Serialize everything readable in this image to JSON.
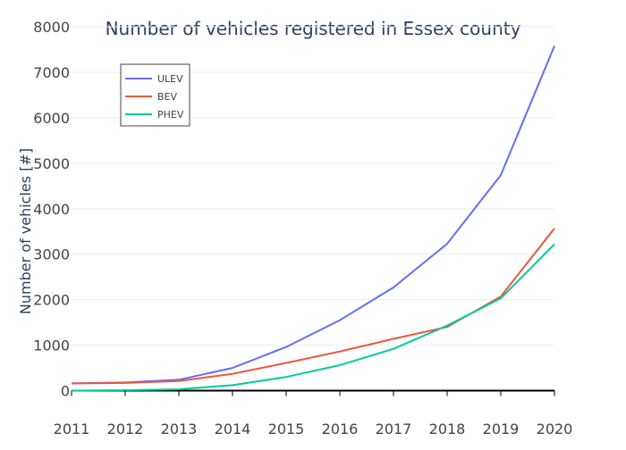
{
  "chart_data": {
    "type": "line",
    "title": "Number of vehicles registered in Essex county",
    "xlabel": "",
    "ylabel": "Number of vehicles [#]",
    "x": [
      2011,
      2012,
      2013,
      2014,
      2015,
      2016,
      2017,
      2018,
      2019,
      2020
    ],
    "x_ticks": [
      "2011",
      "2012",
      "2013",
      "2014",
      "2015",
      "2016",
      "2017",
      "2018",
      "2019",
      "2020"
    ],
    "y_ticks": [
      "0",
      "1000",
      "2000",
      "3000",
      "4000",
      "5000",
      "6000",
      "7000",
      "8000"
    ],
    "ylim": [
      -500,
      8000
    ],
    "xlim": [
      2011,
      2020
    ],
    "grid": true,
    "legend_position": "top-left",
    "series": [
      {
        "name": "ULEV",
        "color": "#636efa",
        "values": [
          160,
          180,
          240,
          500,
          960,
          1550,
          2270,
          3230,
          4740,
          7580
        ]
      },
      {
        "name": "BEV",
        "color": "#ef553b",
        "values": [
          160,
          170,
          210,
          370,
          610,
          860,
          1140,
          1400,
          2070,
          3570
        ]
      },
      {
        "name": "PHEV",
        "color": "#00cc96",
        "values": [
          0,
          10,
          30,
          120,
          300,
          560,
          920,
          1430,
          2030,
          3220
        ]
      }
    ]
  }
}
